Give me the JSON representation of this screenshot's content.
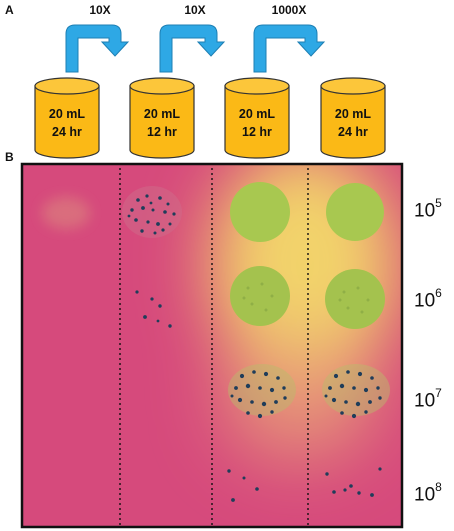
{
  "panel_a": {
    "label": "A",
    "multipliers": [
      "10X",
      "10X",
      "1000X"
    ],
    "cylinders": [
      {
        "volume": "20 mL",
        "time": "24 hr"
      },
      {
        "volume": "20 mL",
        "time": "12 hr"
      },
      {
        "volume": "20 mL",
        "time": "12 hr"
      },
      {
        "volume": "20 mL",
        "time": "24 hr"
      }
    ]
  },
  "panel_b": {
    "label": "B",
    "dilutions": [
      {
        "base": "10",
        "exp": "5"
      },
      {
        "base": "10",
        "exp": "6"
      },
      {
        "base": "10",
        "exp": "7"
      },
      {
        "base": "10",
        "exp": "8"
      }
    ]
  },
  "colors": {
    "cylinder_fill": "#fbb916",
    "arrow_fill": "#2ea8e5",
    "plate_magenta": "#d64a7c",
    "plate_yellow": "#e8d06a",
    "colony_green": "#a8c850",
    "colony_dot": "#1f3d5a"
  }
}
